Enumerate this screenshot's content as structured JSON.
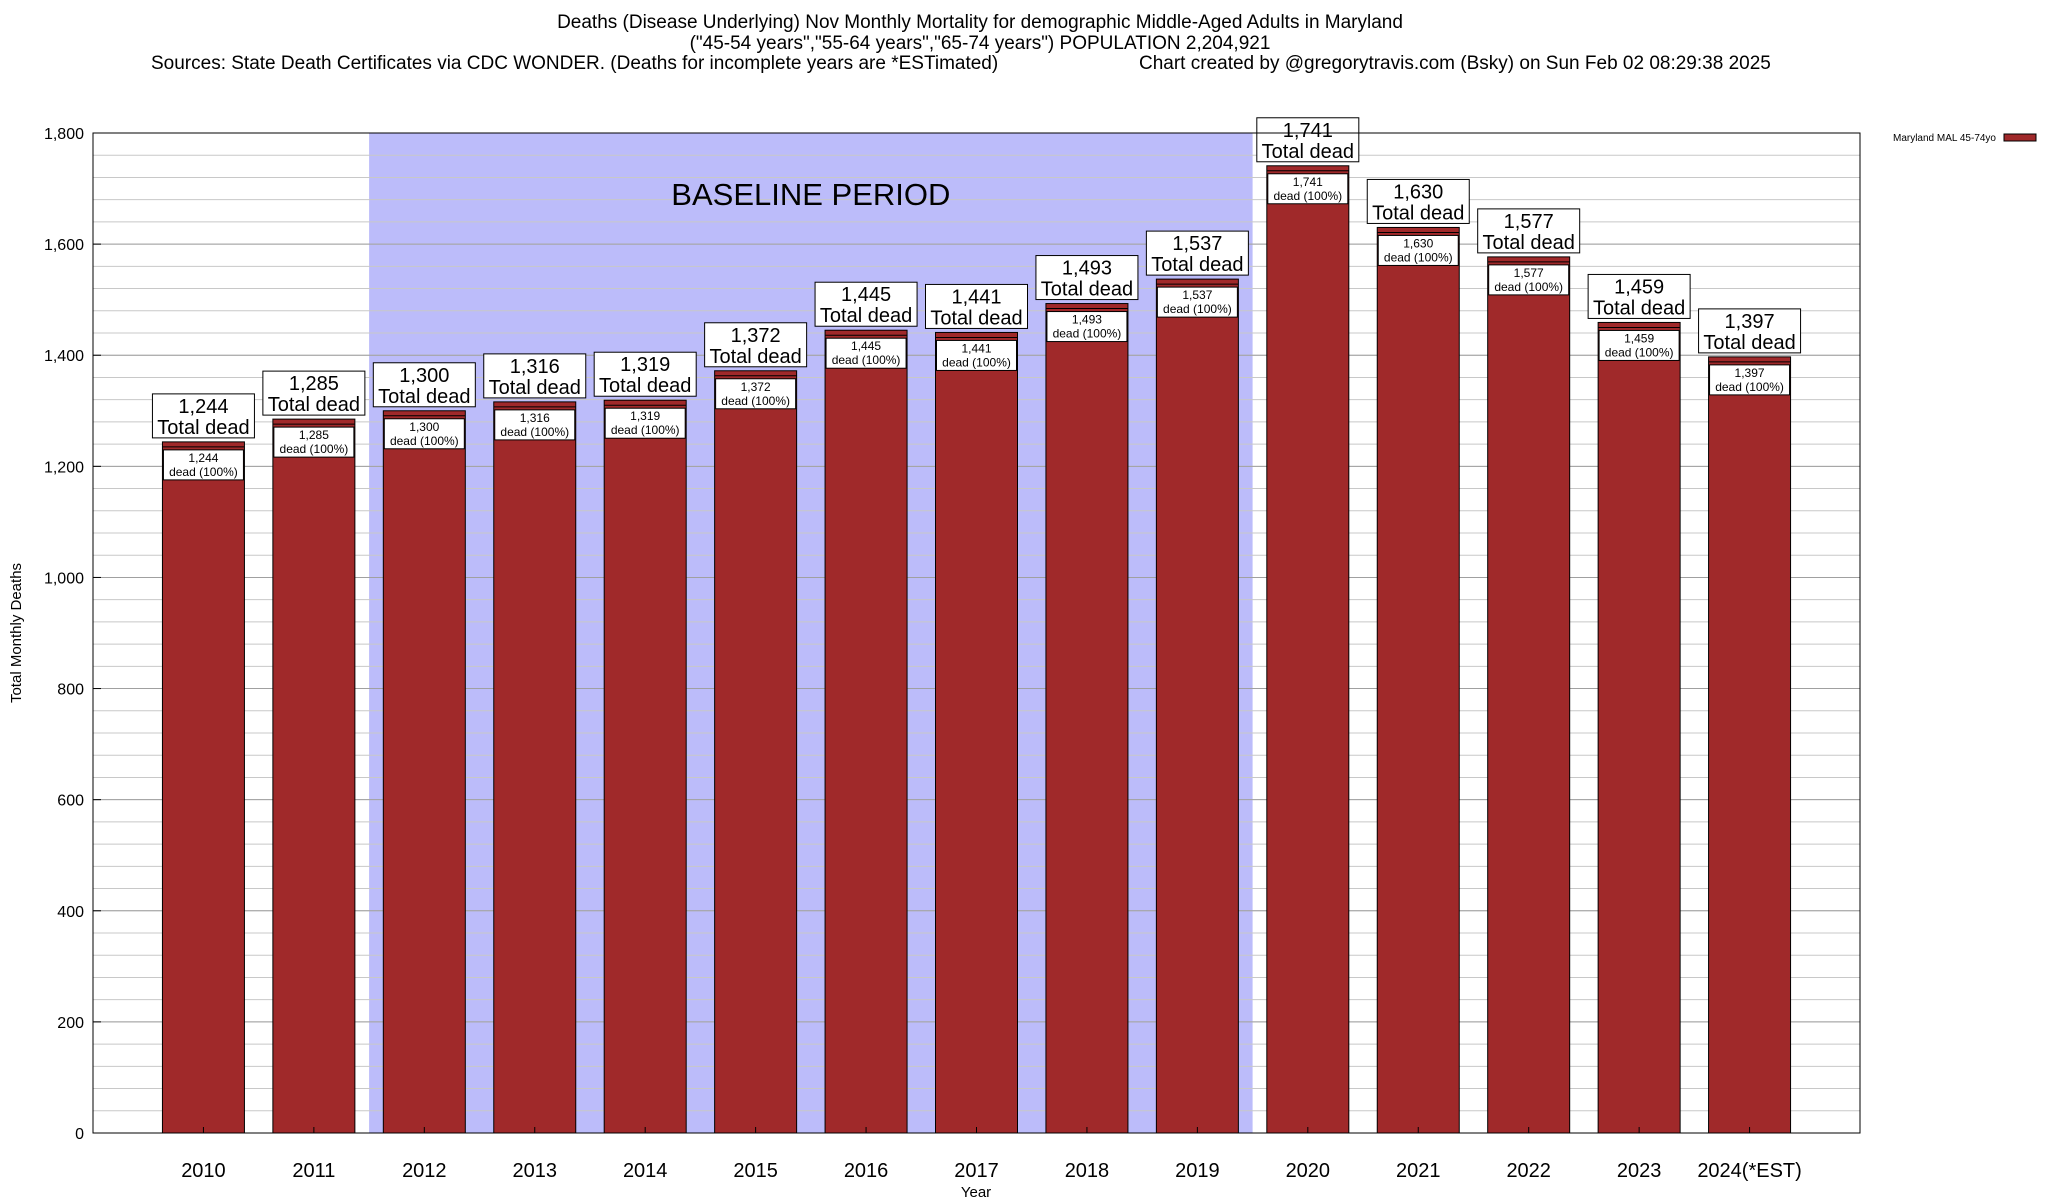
{
  "header": {
    "title_line1": "Deaths (Disease Underlying) Nov Monthly Mortality for demographic Middle-Aged Adults in Maryland",
    "title_line2": "(\"45-54 years\",\"55-64 years\",\"65-74 years\") POPULATION 2,204,921",
    "sources": "Sources: State Death Certificates via CDC WONDER. (Deaths for incomplete years are *ESTimated)",
    "credit": "Chart created by @gregorytravis.com (Bsky) on Sun Feb 02 08:29:38 2025"
  },
  "chart_data": {
    "type": "bar",
    "categories": [
      "2010",
      "2011",
      "2012",
      "2013",
      "2014",
      "2015",
      "2016",
      "2017",
      "2018",
      "2019",
      "2020",
      "2021",
      "2022",
      "2023",
      "2024(*EST)"
    ],
    "series": [
      {
        "name": "Maryland MAL 45-74yo",
        "color": "#a0292a",
        "values": [
          1244,
          1285,
          1300,
          1316,
          1319,
          1372,
          1445,
          1441,
          1493,
          1537,
          1741,
          1630,
          1577,
          1459,
          1397
        ]
      }
    ],
    "total_labels": [
      "1,244",
      "1,285",
      "1,300",
      "1,316",
      "1,319",
      "1,372",
      "1,445",
      "1,441",
      "1,493",
      "1,537",
      "1,741",
      "1,630",
      "1,577",
      "1,459",
      "1,397"
    ],
    "total_suffix": "Total dead",
    "inner_suffix": "dead (100%)",
    "xlabel": "Year",
    "ylabel": "Total Monthly Deaths",
    "ylim": [
      0,
      1800
    ],
    "yticks": [
      0,
      200,
      400,
      600,
      800,
      1000,
      1200,
      1400,
      1600,
      1800
    ],
    "ytick_labels": [
      "0",
      "200",
      "400",
      "600",
      "800",
      "1,000",
      "1,200",
      "1,400",
      "1,600",
      "1,800"
    ],
    "minor_grid_step": 40,
    "baseline": {
      "label": "BASELINE PERIOD",
      "start": "2012",
      "end": "2019",
      "color": "#bcbcfa"
    },
    "legend": {
      "label": "Maryland MAL 45-74yo",
      "placement": "top-right, outside plot"
    },
    "grid": true
  }
}
